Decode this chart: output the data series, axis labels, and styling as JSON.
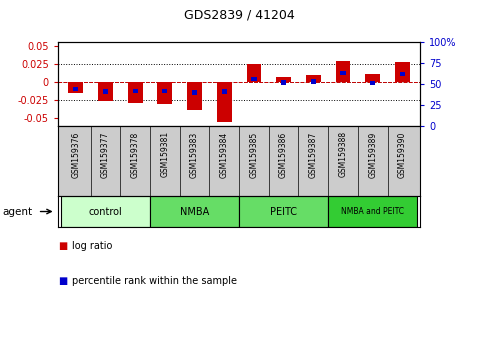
{
  "title": "GDS2839 / 41204",
  "samples": [
    "GSM159376",
    "GSM159377",
    "GSM159378",
    "GSM159381",
    "GSM159383",
    "GSM159384",
    "GSM159385",
    "GSM159386",
    "GSM159387",
    "GSM159388",
    "GSM159389",
    "GSM159390"
  ],
  "log_ratio": [
    -0.015,
    -0.026,
    -0.028,
    -0.03,
    -0.038,
    -0.055,
    0.025,
    0.007,
    0.01,
    0.03,
    0.012,
    0.028
  ],
  "percentile_rank": [
    44,
    41,
    42,
    42,
    40,
    41,
    56,
    52,
    53,
    63,
    51,
    62
  ],
  "agent_groups": [
    {
      "label": "control",
      "start": 0,
      "end": 3,
      "color": "#ccffcc"
    },
    {
      "label": "NMBA",
      "start": 3,
      "end": 6,
      "color": "#66dd66"
    },
    {
      "label": "PEITC",
      "start": 6,
      "end": 9,
      "color": "#66dd66"
    },
    {
      "label": "NMBA and PEITC",
      "start": 9,
      "end": 12,
      "color": "#33cc33"
    }
  ],
  "ylim": [
    -0.06,
    0.055
  ],
  "yticks": [
    -0.05,
    -0.025,
    0,
    0.025,
    0.05
  ],
  "ytick_labels_left": [
    "-0.05",
    "-0.025",
    "0",
    "0.025",
    "0.05"
  ],
  "ytick_labels_right": [
    "0",
    "25",
    "50",
    "75",
    "100%"
  ],
  "right_ylim": [
    0,
    100
  ],
  "right_yticks": [
    0,
    25,
    50,
    75,
    100
  ],
  "bar_color_red": "#cc0000",
  "bar_color_blue": "#0000cc",
  "left_tick_color": "#cc0000",
  "right_tick_color": "#0000cc",
  "grid_color": "#000000",
  "bar_width": 0.5,
  "background_color": "#ffffff",
  "plot_bg_color": "#ffffff",
  "agent_label": "agent",
  "legend_log_ratio": "log ratio",
  "legend_percentile": "percentile rank within the sample"
}
